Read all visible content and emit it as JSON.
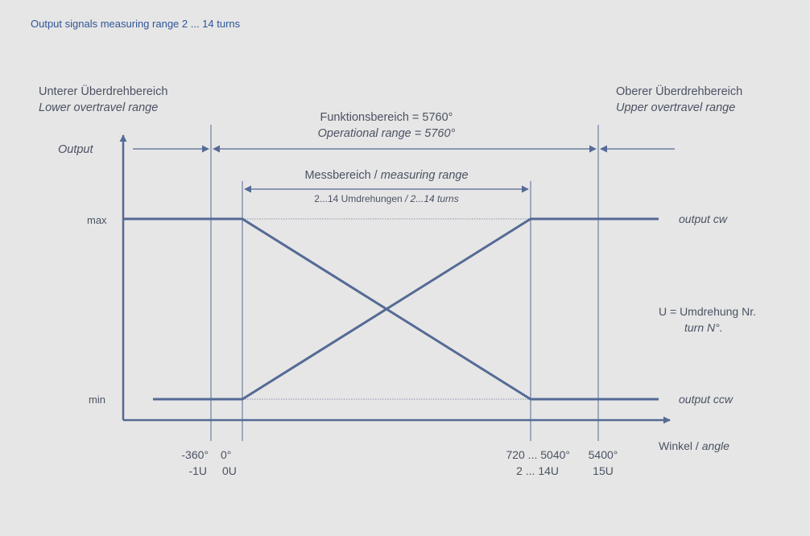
{
  "caption": "Output signals measuring range 2 ... 14 turns",
  "colors": {
    "background": "#e6e6e6",
    "caption": "#2e5597",
    "lines": "#556a95",
    "text": "#4b5263"
  },
  "labels": {
    "lower_overtravel_de": "Unterer Überdrehbereich",
    "lower_overtravel_en": "Lower overtravel range",
    "upper_overtravel_de": "Oberer Überdrehbereich",
    "upper_overtravel_en": "Upper overtravel range",
    "functional_de": "Funktionsbereich = 5760°",
    "functional_en": "Operational range = 5760°",
    "measuring_de": "Messbereich /",
    "measuring_en": "measuring range",
    "turns_de": "2...14 Umdrehungen",
    "turns_en": "/ 2...14 turns",
    "output_axis": "Output",
    "max": "max",
    "min": "min",
    "output_cw": "output cw",
    "output_ccw": "output ccw",
    "legend_u_de": "U = Umdrehung Nr.",
    "legend_u_en": "turn N°.",
    "angle_de": "Winkel /",
    "angle_en": "angle"
  },
  "ticks": [
    {
      "key": "m360",
      "angle": "-360°",
      "turn": "-1U"
    },
    {
      "key": "zero",
      "angle": "0°",
      "turn": "0U"
    },
    {
      "key": "range",
      "angle": "720 ... 5040°",
      "turn": "2 ... 14U"
    },
    {
      "key": "p5400",
      "angle": "5400°",
      "turn": "15U"
    }
  ]
}
